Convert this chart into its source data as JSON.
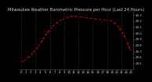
{
  "title": "Milwaukee Weather Barometric Pressure per Hour (Last 24 Hours)",
  "hours": [
    0,
    1,
    2,
    3,
    4,
    5,
    6,
    7,
    8,
    9,
    10,
    11,
    12,
    13,
    14,
    15,
    16,
    17,
    18,
    19,
    20,
    21,
    22,
    23
  ],
  "pressure": [
    29.51,
    29.56,
    29.63,
    29.72,
    29.82,
    29.95,
    30.06,
    30.14,
    30.2,
    30.24,
    30.27,
    30.28,
    30.27,
    30.26,
    30.25,
    30.24,
    30.23,
    30.22,
    30.21,
    30.2,
    30.14,
    30.04,
    29.89,
    29.7
  ],
  "line_color": "#ff0000",
  "dot_color": "#000000",
  "grid_color": "#555555",
  "bg_color": "#000000",
  "label_color": "#cccccc",
  "title_color": "#cccccc",
  "ylim_min": 29.4,
  "ylim_max": 30.35,
  "yticks": [
    29.5,
    29.6,
    29.7,
    29.8,
    29.9,
    30.0,
    30.1,
    30.2,
    30.3
  ],
  "ytick_labels": [
    "29.5",
    "29.6",
    "29.7",
    "29.8",
    "29.9",
    "30.0",
    "30.1",
    "30.2",
    "30.3"
  ],
  "grid_hours": [
    0,
    3,
    6,
    9,
    12,
    15,
    18,
    21
  ],
  "title_fontsize": 3.8,
  "tick_fontsize": 2.8
}
